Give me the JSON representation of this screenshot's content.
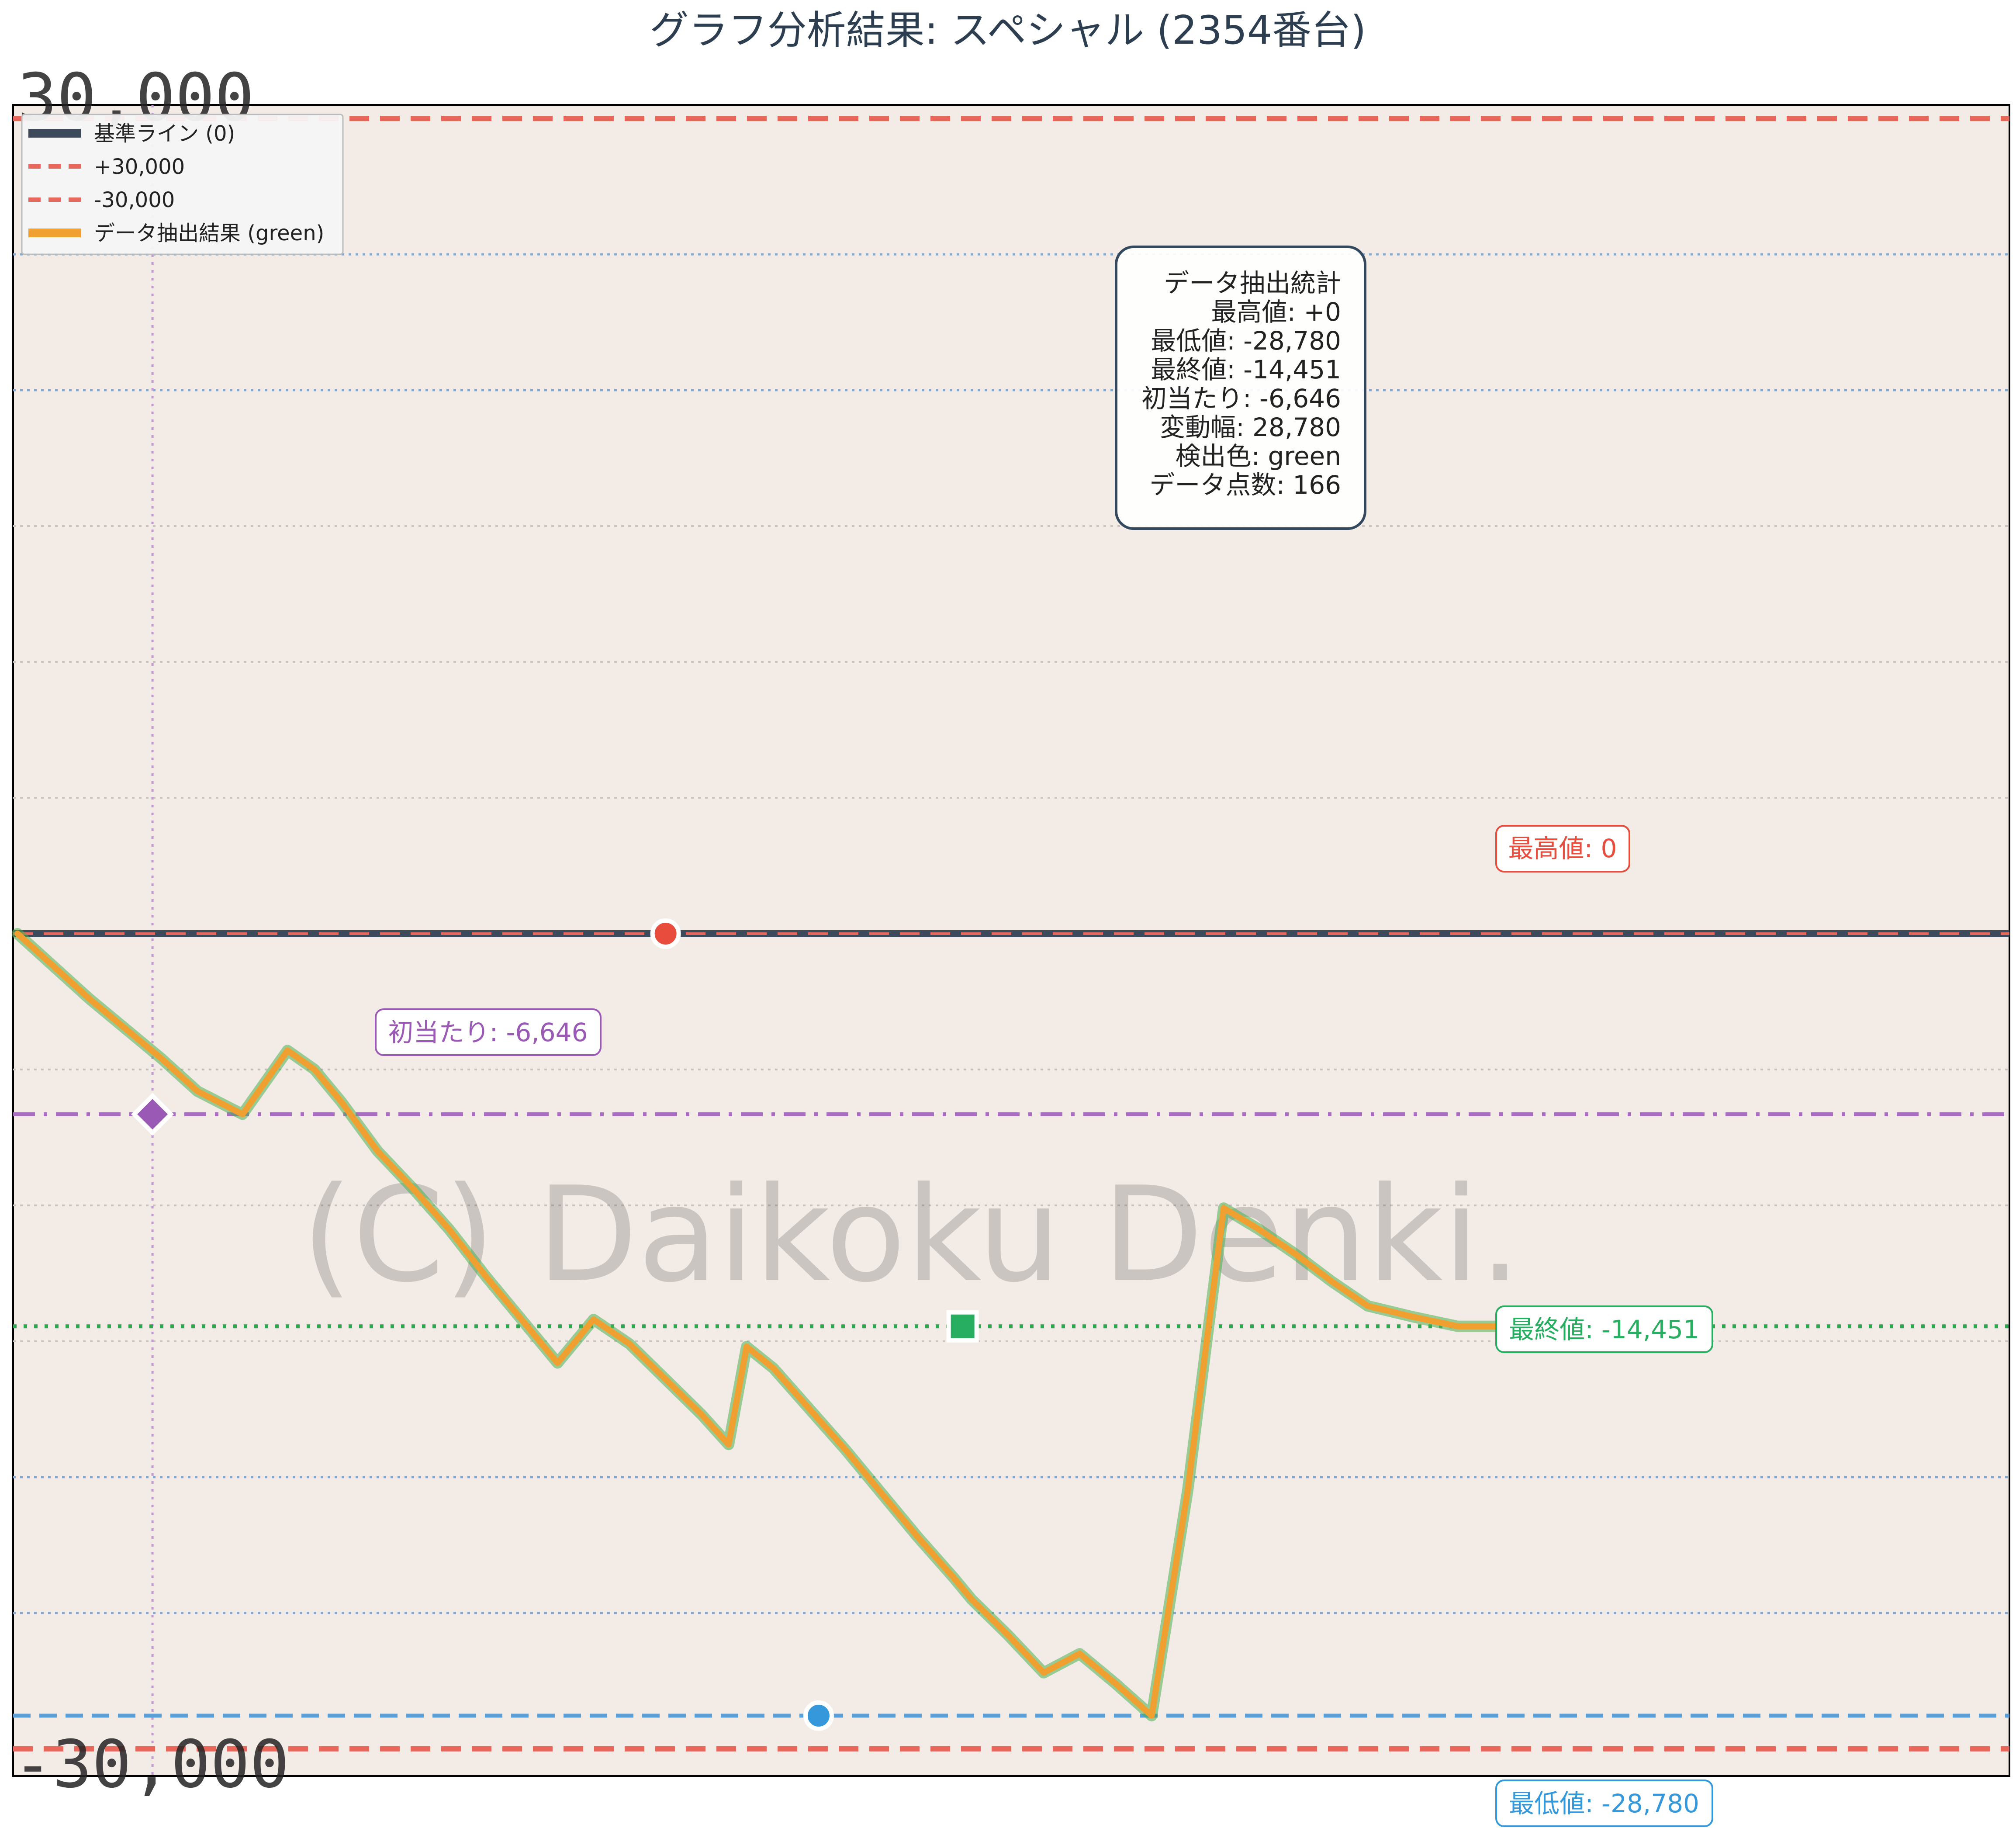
{
  "chart_data": {
    "type": "line",
    "title": "グラフ分析結果: スペシャル (2354番台)",
    "ylim": [
      -31000,
      30500
    ],
    "xlim": [
      0,
      165
    ],
    "grid": true,
    "legend_position": "top-left",
    "legend": [
      {
        "label": "基準ライン (0)",
        "color": "#3d4a5c",
        "style": "solid"
      },
      {
        "label": "+30,000",
        "color": "#e8665a",
        "style": "dashed"
      },
      {
        "label": "-30,000",
        "color": "#e8665a",
        "style": "dashed"
      },
      {
        "label": "データ抽出結果 (green)",
        "color": "#f0a030",
        "style": "solid"
      }
    ],
    "reference_lines": [
      {
        "value": 0,
        "color": "#3d4a5c"
      },
      {
        "value": 30000,
        "color": "#e8665a"
      },
      {
        "value": -30000,
        "color": "#e8665a"
      },
      {
        "value": -6646,
        "color": "#a86cc1"
      },
      {
        "value": -14451,
        "color": "#2ea84e"
      },
      {
        "value": -28780,
        "color": "#5a9fd8"
      }
    ],
    "series": [
      {
        "name": "データ抽出結果 (green)",
        "color": "#f0a030",
        "x": [
          0,
          4,
          8,
          12,
          16,
          20,
          25,
          30,
          33,
          36,
          40,
          44,
          48,
          52,
          56,
          60,
          64,
          68,
          72,
          76,
          79,
          81,
          84,
          88,
          92,
          96,
          100,
          104,
          106,
          110,
          114,
          118,
          122,
          126,
          130,
          134,
          138,
          142,
          146,
          150,
          155,
          160,
          165
        ],
        "y": [
          0,
          -1200,
          -2400,
          -3500,
          -4600,
          -5800,
          -6646,
          -4300,
          -5000,
          -6200,
          -8000,
          -9400,
          -10900,
          -12600,
          -14200,
          -15800,
          -14200,
          -15100,
          -16400,
          -17700,
          -18800,
          -15200,
          -16000,
          -17500,
          -19000,
          -20600,
          -22200,
          -23700,
          -24500,
          -25800,
          -27200,
          -26500,
          -27600,
          -28780,
          -20500,
          -10100,
          -10900,
          -11800,
          -12800,
          -13700,
          -14100,
          -14451,
          -14451
        ]
      }
    ],
    "markers": [
      {
        "name": "最高値",
        "x": 72,
        "y": 0,
        "color": "#e74c3c"
      },
      {
        "name": "初当たり",
        "x": 15,
        "y": -6646,
        "color": "#9b59b6"
      },
      {
        "name": "最低値",
        "x": 89,
        "y": -28780,
        "color": "#3498db"
      },
      {
        "name": "最終値",
        "x": 105,
        "y": -14451,
        "color": "#27ae60"
      }
    ],
    "annotations": {
      "max": "最高値: 0",
      "first_hit": "初当たり: -6,646",
      "min": "最低値: -28,780",
      "final": "最終値: -14,451"
    },
    "stats_box": [
      "データ抽出統計",
      "最高値: +0",
      "最低値: -28,780",
      "最終値: -14,451",
      "初当たり: -6,646",
      "変動幅: 28,780",
      "検出色: green",
      "データ点数: 166"
    ],
    "watermark": "(C) Daikoku Denki.",
    "image_labels": [
      "30,000",
      "-30,000"
    ]
  }
}
